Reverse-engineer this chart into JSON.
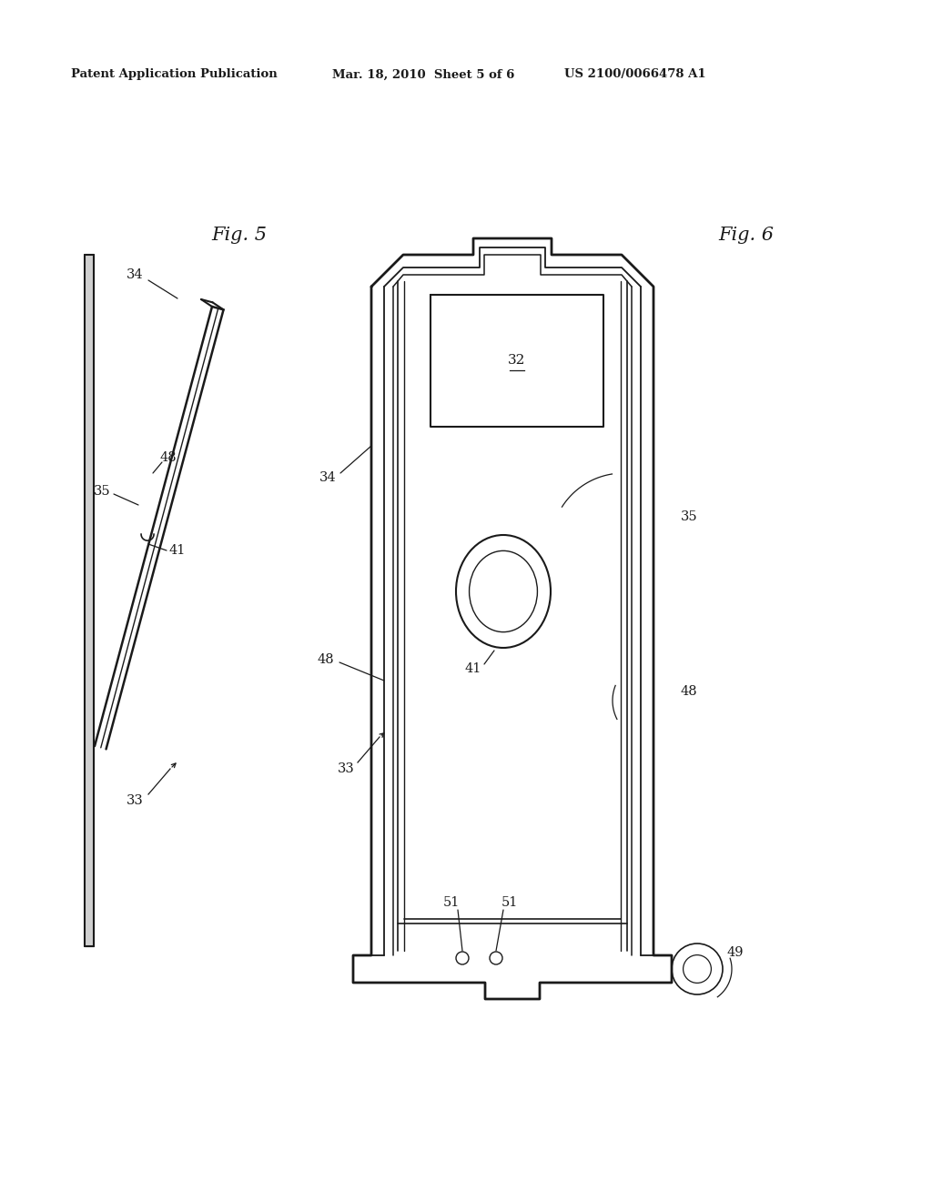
{
  "bg_color": "#ffffff",
  "line_color": "#1a1a1a",
  "header_left": "Patent Application Publication",
  "header_mid": "Mar. 18, 2010  Sheet 5 of 6",
  "header_right": "US 2100/0066478 A1",
  "fig5_label": "Fig. 5",
  "fig6_label": "Fig. 6",
  "ann_fs": 10.5
}
